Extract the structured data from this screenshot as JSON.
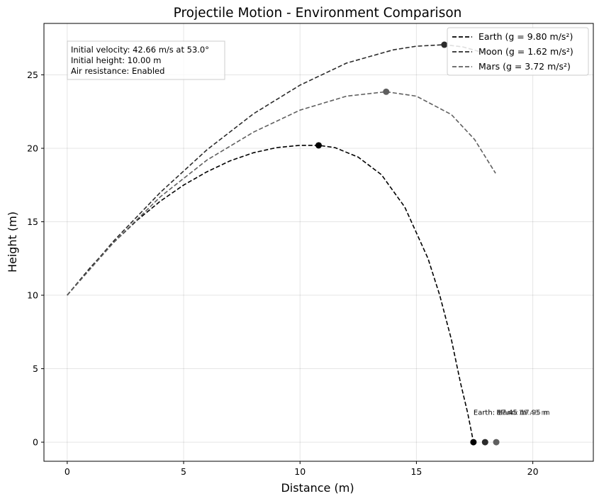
{
  "chart_data": {
    "type": "line",
    "title": "Projectile Motion - Environment Comparison",
    "xlabel": "Distance (m)",
    "ylabel": "Height (m)",
    "xlim": [
      -1.0,
      22.6
    ],
    "ylim": [
      -1.3,
      28.5
    ],
    "xticks": [
      0,
      5,
      10,
      15,
      20
    ],
    "yticks": [
      0,
      5,
      10,
      15,
      20,
      25
    ],
    "grid": true,
    "legend_position": "top-right",
    "info_box": {
      "lines": [
        "Initial velocity: 42.66 m/s at 53.0°",
        "Initial height: 10.00 m",
        "Air resistance: Enabled"
      ]
    },
    "series": [
      {
        "name": "Earth (g = 9.80 m/s²)",
        "color": "#000000",
        "line_style": "dashed",
        "x": [
          0,
          1,
          2,
          3,
          4,
          5,
          6,
          7,
          8,
          9,
          10,
          10.8,
          11.5,
          12.5,
          13.5,
          14.5,
          15.5,
          16.0,
          16.5,
          16.9,
          17.2,
          17.45
        ],
        "y": [
          10.0,
          11.9,
          13.6,
          15.1,
          16.4,
          17.5,
          18.4,
          19.15,
          19.7,
          20.05,
          20.2,
          20.2,
          20.05,
          19.4,
          18.2,
          16.0,
          12.5,
          10.0,
          7.0,
          4.0,
          2.0,
          0.0
        ],
        "apex": {
          "x": 10.8,
          "y": 20.2
        },
        "landing": {
          "x": 17.45,
          "y": 0.0,
          "label": "Earth: 17.45 m"
        }
      },
      {
        "name": "Moon (g = 1.62 m/s²)",
        "color": "#2b2b2b",
        "line_style": "dashed",
        "x": [
          0,
          2,
          4,
          6,
          8,
          10,
          12,
          14,
          15,
          16.2,
          17,
          17.9
        ],
        "y": [
          10.0,
          13.7,
          17.0,
          19.9,
          22.35,
          24.3,
          25.8,
          26.7,
          26.95,
          27.05,
          26.9,
          26.5
        ],
        "apex": {
          "x": 16.2,
          "y": 27.05
        },
        "landing": {
          "x": 17.95,
          "y": 0.0,
          "label": "Moon: 17.95 m"
        }
      },
      {
        "name": "Mars (g = 3.72 m/s²)",
        "color": "#5f5f5f",
        "line_style": "dashed",
        "x": [
          0,
          2,
          4,
          6,
          8,
          10,
          12,
          13.7,
          15,
          16.5,
          17.5,
          18.4
        ],
        "y": [
          10.0,
          13.6,
          16.7,
          19.2,
          21.1,
          22.6,
          23.55,
          23.85,
          23.55,
          22.3,
          20.6,
          18.3
        ],
        "apex": {
          "x": 13.7,
          "y": 23.85
        },
        "landing": {
          "x": 18.43,
          "y": 0.0,
          "label": "Mars: 18.43 m"
        }
      }
    ]
  }
}
